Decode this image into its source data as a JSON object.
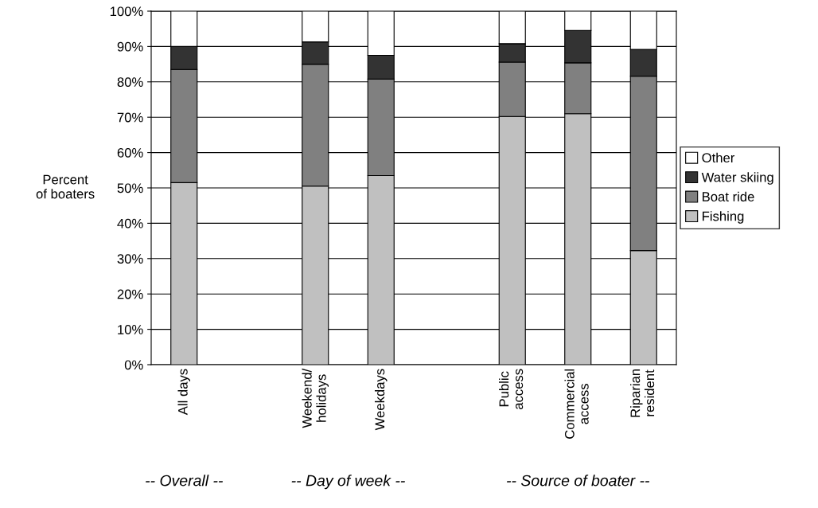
{
  "chart_data": {
    "type": "bar",
    "stacked": true,
    "ylabel": "Percent\nof boaters",
    "categories": [
      "All days",
      null,
      "Weekend/\nholidays",
      "Weekdays",
      null,
      "Public\naccess",
      "Commercial\naccess",
      "Riparian\nresident"
    ],
    "series": [
      {
        "name": "Fishing",
        "color": "#c0c0c0",
        "values": [
          51.5,
          null,
          50.5,
          53.5,
          null,
          70.2,
          71,
          32.3
        ]
      },
      {
        "name": "Boat ride",
        "color": "#808080",
        "values": [
          32,
          null,
          34.5,
          27.3,
          null,
          15.4,
          14.4,
          49.3
        ]
      },
      {
        "name": "Water skiing",
        "color": "#333333",
        "values": [
          6.5,
          null,
          6.3,
          6.7,
          null,
          5.2,
          9.1,
          7.6
        ]
      },
      {
        "name": "Other",
        "color": "#ffffff",
        "values": [
          10,
          null,
          8.7,
          12.5,
          null,
          9.2,
          5.5,
          10.8
        ]
      }
    ],
    "ylim": [
      0,
      100
    ],
    "yticks": [
      {
        "value": 0,
        "label": "0%"
      },
      {
        "value": 10,
        "label": "10%"
      },
      {
        "value": 20,
        "label": "20%"
      },
      {
        "value": 30,
        "label": "30%"
      },
      {
        "value": 40,
        "label": "40%"
      },
      {
        "value": 50,
        "label": "50%"
      },
      {
        "value": 60,
        "label": "60%"
      },
      {
        "value": 70,
        "label": "70%"
      },
      {
        "value": 80,
        "label": "80%"
      },
      {
        "value": 90,
        "label": "90%"
      },
      {
        "value": 100,
        "label": "100%"
      }
    ],
    "grid": "y",
    "legend": "right",
    "annotations": [
      "-- Overall --",
      "-- Day of week --",
      "-- Source of boater --"
    ]
  }
}
